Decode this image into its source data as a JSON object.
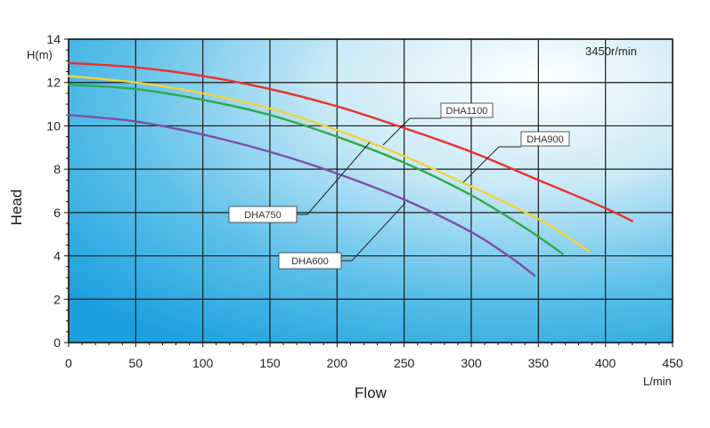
{
  "chart_data": {
    "type": "line",
    "title": "",
    "speed_label": "3450r/min",
    "xlabel": "Flow",
    "xunit": "L/min",
    "ylabel": "Head",
    "yunit": "H(m)",
    "xlim": [
      0,
      450
    ],
    "ylim": [
      0,
      14
    ],
    "xticks": [
      0,
      50,
      100,
      150,
      200,
      250,
      300,
      350,
      400,
      450
    ],
    "yticks": [
      0,
      2,
      4,
      6,
      8,
      10,
      12,
      14
    ],
    "grid": true,
    "series": [
      {
        "name": "DHA1100",
        "color": "#e8322a",
        "points": [
          [
            0,
            12.9
          ],
          [
            50,
            12.7
          ],
          [
            100,
            12.3
          ],
          [
            150,
            11.7
          ],
          [
            200,
            10.9
          ],
          [
            250,
            9.9
          ],
          [
            300,
            8.8
          ],
          [
            350,
            7.5
          ],
          [
            400,
            6.2
          ],
          [
            420,
            5.6
          ]
        ]
      },
      {
        "name": "DHA900",
        "color": "#f2d23c",
        "points": [
          [
            0,
            12.3
          ],
          [
            50,
            12.0
          ],
          [
            100,
            11.5
          ],
          [
            150,
            10.8
          ],
          [
            200,
            9.8
          ],
          [
            250,
            8.6
          ],
          [
            300,
            7.2
          ],
          [
            350,
            5.7
          ],
          [
            388,
            4.2
          ]
        ]
      },
      {
        "name": "DHA750",
        "color": "#2ea84a",
        "points": [
          [
            0,
            11.9
          ],
          [
            50,
            11.7
          ],
          [
            100,
            11.2
          ],
          [
            150,
            10.5
          ],
          [
            200,
            9.5
          ],
          [
            250,
            8.3
          ],
          [
            300,
            6.8
          ],
          [
            340,
            5.3
          ],
          [
            368,
            4.1
          ]
        ]
      },
      {
        "name": "DHA600",
        "color": "#7b4fa6",
        "points": [
          [
            0,
            10.5
          ],
          [
            50,
            10.2
          ],
          [
            100,
            9.6
          ],
          [
            150,
            8.8
          ],
          [
            200,
            7.8
          ],
          [
            250,
            6.6
          ],
          [
            300,
            5.1
          ],
          [
            330,
            3.9
          ],
          [
            347,
            3.1
          ]
        ]
      }
    ]
  }
}
